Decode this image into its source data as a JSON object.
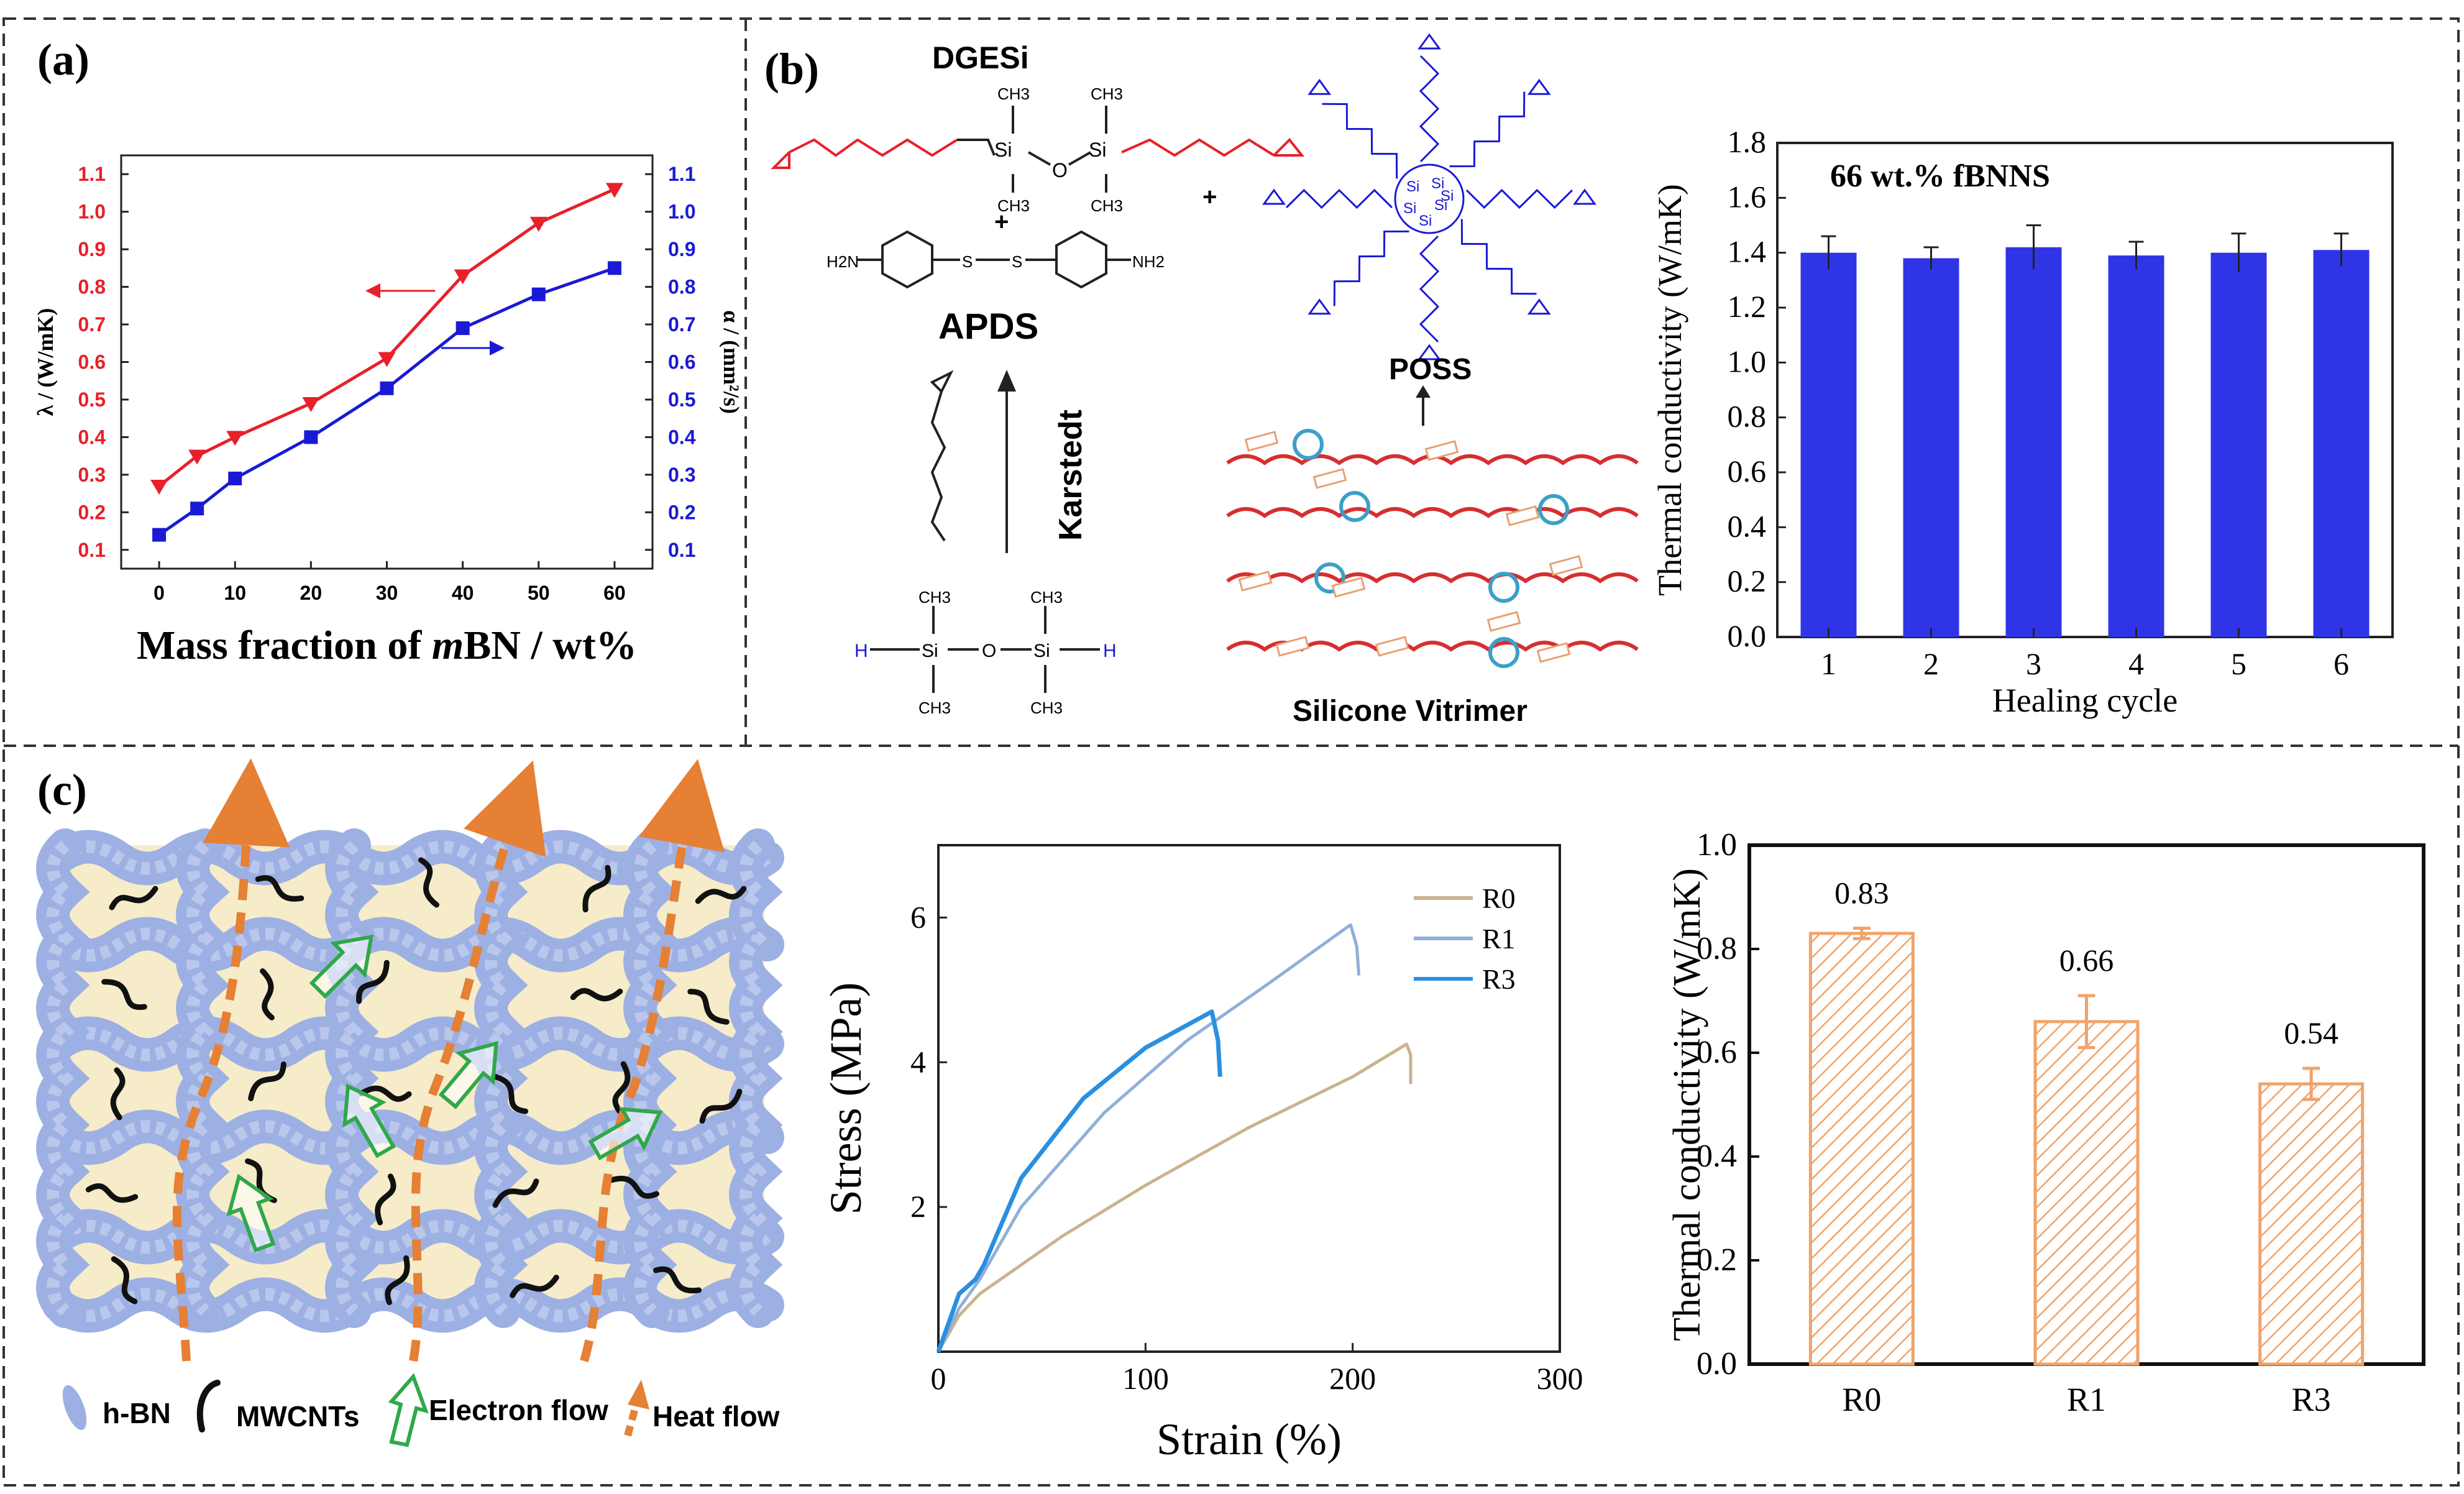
{
  "panels": {
    "a": {
      "label": "(a)"
    },
    "b": {
      "label": "(b)",
      "chem": {
        "dgesi": "DGESi",
        "apds": "APDS",
        "poss": "POSS",
        "karstedt": "Karstedt",
        "vitrimer": "Silicone Vitrimer",
        "plus": "+",
        "ch3": "CH3",
        "si": "Si",
        "o": "O",
        "h": "H",
        "s": "S",
        "h2n": "H2N",
        "nh2": "NH2"
      }
    },
    "c": {
      "label": "(c)",
      "legend": {
        "hbn": "h-BN",
        "mwcnts": "MWCNTs",
        "electron": "Electron flow",
        "heat": "Heat flow"
      }
    }
  },
  "colors": {
    "red": "#e8202a",
    "blue": "#1a1ad6",
    "bar_blue": "#2f35e6",
    "bar_orange": "#f0a36a",
    "r0": "#c9b48d",
    "r1": "#8fb0d8",
    "r3": "#2b8fe0",
    "hbn": "#9db0e3",
    "matrix_bg": "#f6ecc9",
    "heat_arrow": "#e58035",
    "electron_arrow": "#2fa84a"
  },
  "chart_data": [
    {
      "id": "a",
      "type": "line",
      "xlabel_prefix": "Mass fraction of ",
      "xlabel_italic": "m",
      "xlabel_suffix": "BN / wt%",
      "ylabel_left": "λ / (W/mK)",
      "ylabel_right": "α / (mm²/s)",
      "x_ticks": [
        "0",
        "10",
        "20",
        "30",
        "40",
        "50",
        "60"
      ],
      "y_ticks": [
        "0.1",
        "0.2",
        "0.3",
        "0.4",
        "0.5",
        "0.6",
        "0.7",
        "0.8",
        "0.9",
        "1.0",
        "1.1"
      ],
      "ylim": [
        0.05,
        1.15
      ],
      "xlim": [
        -5,
        65
      ],
      "x": [
        0,
        5,
        10,
        20,
        30,
        40,
        50,
        60
      ],
      "series": [
        {
          "axis": "left",
          "marker": "triangle",
          "color": "#e8202a",
          "values": [
            0.27,
            0.35,
            0.4,
            0.49,
            0.61,
            0.83,
            0.97,
            1.06
          ]
        },
        {
          "axis": "right",
          "marker": "square",
          "color": "#1a1ad6",
          "values": [
            0.14,
            0.21,
            0.29,
            0.4,
            0.53,
            0.69,
            0.78,
            0.85
          ]
        }
      ]
    },
    {
      "id": "b",
      "type": "bar",
      "title": "66 wt.% fBNNS",
      "xlabel": "Healing cycle",
      "ylabel": "Thermal conductivity (W/mK)",
      "categories": [
        "1",
        "2",
        "3",
        "4",
        "5",
        "6"
      ],
      "values": [
        1.4,
        1.38,
        1.42,
        1.39,
        1.4,
        1.41
      ],
      "errors": [
        0.06,
        0.04,
        0.08,
        0.05,
        0.07,
        0.06
      ],
      "y_ticks": [
        "0.0",
        "0.2",
        "0.4",
        "0.6",
        "0.8",
        "1.0",
        "1.2",
        "1.4",
        "1.6",
        "1.8"
      ],
      "ylim": [
        0,
        1.8
      ]
    },
    {
      "id": "c-stress",
      "type": "line",
      "xlabel": "Strain (%)",
      "ylabel": "Stress (MPa)",
      "x_ticks": [
        "0",
        "100",
        "200",
        "300"
      ],
      "y_ticks": [
        "2",
        "4",
        "6"
      ],
      "xlim": [
        0,
        300
      ],
      "ylim": [
        0,
        7
      ],
      "legend_position": "top-right",
      "series": [
        {
          "name": "R0",
          "color": "#c9b48d",
          "x": [
            0,
            10,
            20,
            40,
            60,
            100,
            150,
            200,
            226,
            228,
            228
          ],
          "y": [
            0,
            0.5,
            0.8,
            1.2,
            1.6,
            2.3,
            3.1,
            3.8,
            4.25,
            4.1,
            3.7
          ]
        },
        {
          "name": "R1",
          "color": "#8fb0d8",
          "x": [
            0,
            10,
            20,
            40,
            80,
            120,
            160,
            199,
            202,
            203
          ],
          "y": [
            0,
            0.6,
            1.0,
            2.0,
            3.3,
            4.3,
            5.1,
            5.9,
            5.6,
            5.2
          ]
        },
        {
          "name": "R3",
          "color": "#2b8fe0",
          "x": [
            0,
            10,
            18,
            22,
            40,
            70,
            100,
            132,
            135,
            136
          ],
          "y": [
            0,
            0.8,
            1.0,
            1.2,
            2.4,
            3.5,
            4.2,
            4.7,
            4.3,
            3.8
          ]
        }
      ]
    },
    {
      "id": "c-bar",
      "type": "bar",
      "ylabel": "Thermal conductivity (W/mK)",
      "categories": [
        "R0",
        "R1",
        "R3"
      ],
      "values": [
        0.83,
        0.66,
        0.54
      ],
      "value_labels": [
        "0.83",
        "0.66",
        "0.54"
      ],
      "errors": [
        0.01,
        0.05,
        0.03
      ],
      "y_ticks": [
        "0.0",
        "0.2",
        "0.4",
        "0.6",
        "0.8",
        "1.0"
      ],
      "ylim": [
        0,
        1.0
      ]
    }
  ]
}
